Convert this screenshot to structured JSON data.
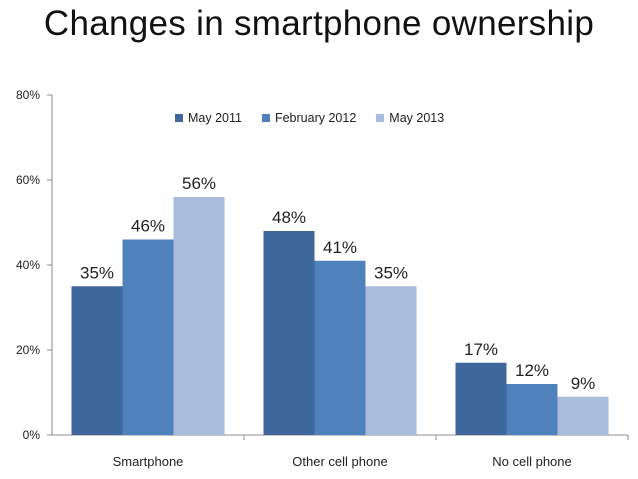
{
  "chart_data": {
    "type": "bar",
    "title": "Changes in smartphone ownership",
    "categories": [
      "Smartphone",
      "Other cell phone",
      "No cell phone"
    ],
    "series": [
      {
        "name": "May 2011",
        "values": [
          35,
          48,
          17
        ],
        "labels": [
          "35%",
          "48%",
          "17%"
        ],
        "color": "#3e679b"
      },
      {
        "name": "February 2012",
        "values": [
          46,
          41,
          12
        ],
        "labels": [
          "46%",
          "41%",
          "12%"
        ],
        "color": "#4f81bd"
      },
      {
        "name": "May 2013",
        "values": [
          56,
          35,
          9
        ],
        "labels": [
          "56%",
          "35%",
          "9%"
        ],
        "color": "#a9bcdc"
      }
    ],
    "ylim": [
      0,
      80
    ],
    "yticks": [
      0,
      20,
      40,
      60,
      80
    ],
    "ytick_labels": [
      "0%",
      "20%",
      "40%",
      "60%",
      "80%"
    ],
    "xlabel": "",
    "ylabel": "",
    "grid": false,
    "legend_position": "top"
  }
}
